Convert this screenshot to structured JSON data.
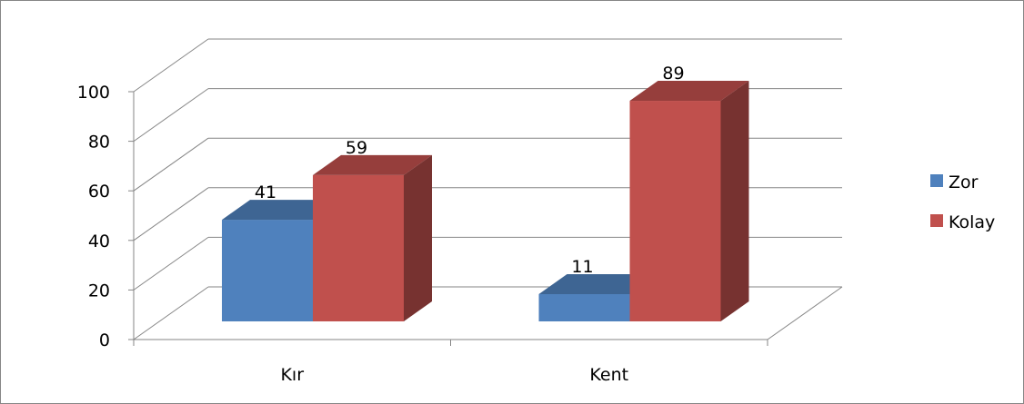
{
  "chart_data": {
    "type": "bar",
    "style": "3d-clustered-column",
    "categories": [
      "Kır",
      "Kent"
    ],
    "series": [
      {
        "name": "Zor",
        "values": [
          41,
          11
        ],
        "color": "#4f81bd"
      },
      {
        "name": "Kolay",
        "values": [
          59,
          89
        ],
        "color": "#c0504d"
      }
    ],
    "ylim": [
      0,
      100
    ],
    "yticks": [
      "0",
      "20",
      "40",
      "60",
      "80",
      "100"
    ],
    "grid": true,
    "legend": "right",
    "data_labels": true
  }
}
